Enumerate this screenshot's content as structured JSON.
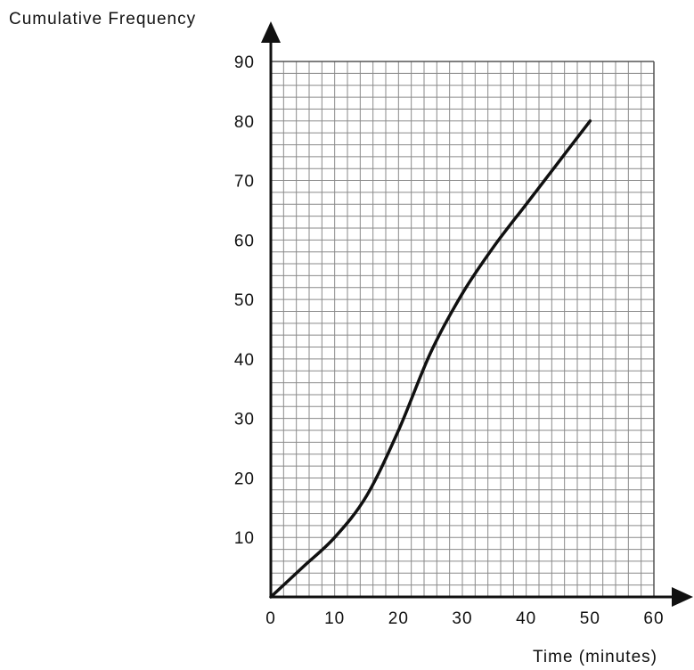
{
  "chart_data": {
    "type": "line",
    "title": "",
    "xlabel": "Time (minutes)",
    "ylabel": "Cumulative Frequency",
    "xlim": [
      0,
      60
    ],
    "ylim": [
      0,
      90
    ],
    "grid": true,
    "grid_minor_step": [
      2,
      2
    ],
    "xticks": [
      {
        "value": 0,
        "label": "0"
      },
      {
        "value": 10,
        "label": "10"
      },
      {
        "value": 20,
        "label": "20"
      },
      {
        "value": 30,
        "label": "30"
      },
      {
        "value": 40,
        "label": "40"
      },
      {
        "value": 50,
        "label": "50"
      },
      {
        "value": 60,
        "label": "60"
      }
    ],
    "yticks": [
      {
        "value": 10,
        "label": "10"
      },
      {
        "value": 20,
        "label": "20"
      },
      {
        "value": 30,
        "label": "30"
      },
      {
        "value": 40,
        "label": "40"
      },
      {
        "value": 50,
        "label": "50"
      },
      {
        "value": 60,
        "label": "60"
      },
      {
        "value": 70,
        "label": "70"
      },
      {
        "value": 80,
        "label": "80"
      },
      {
        "value": 90,
        "label": "90"
      }
    ],
    "series": [
      {
        "color": "#111111",
        "points": [
          [
            0,
            0
          ],
          [
            5,
            5
          ],
          [
            10,
            10
          ],
          [
            15,
            17
          ],
          [
            20,
            28
          ],
          [
            25,
            41
          ],
          [
            30,
            51
          ],
          [
            35,
            59
          ],
          [
            40,
            66
          ],
          [
            45,
            73
          ],
          [
            50,
            80
          ]
        ]
      }
    ]
  }
}
